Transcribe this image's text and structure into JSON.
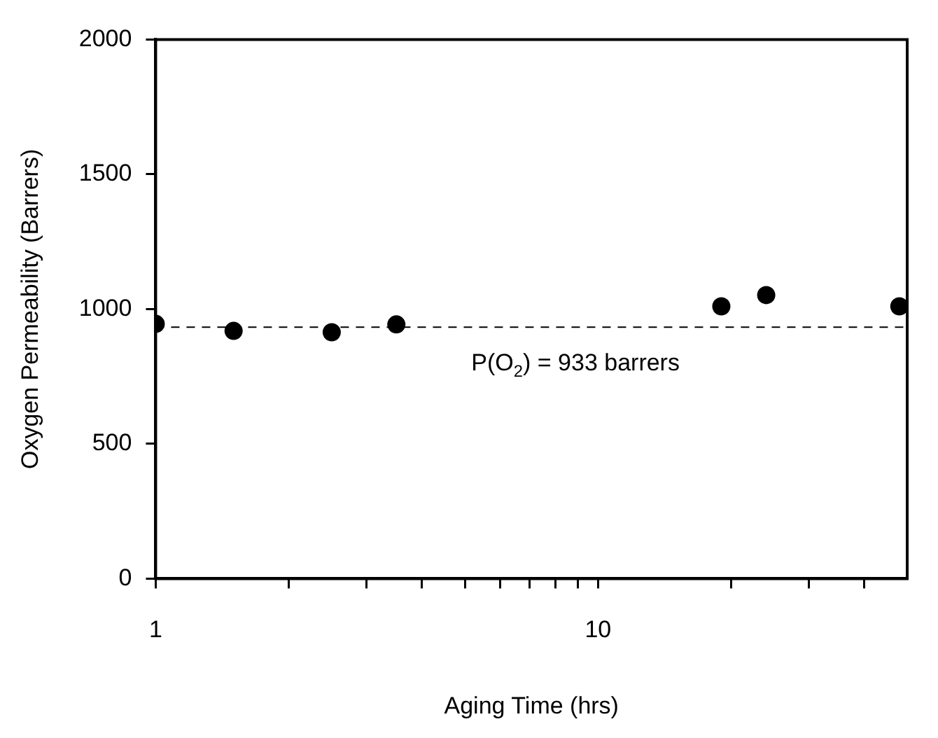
{
  "chart_data": {
    "type": "scatter",
    "xlabel": "Aging Time (hrs)",
    "ylabel": "Oxygen Permeability (Barrers)",
    "x": [
      1,
      1.5,
      2.5,
      3.5,
      19,
      24,
      48
    ],
    "series": [
      {
        "color": "#000000",
        "values": [
          945,
          919,
          914,
          943,
          1010,
          1052,
          1010
        ]
      }
    ],
    "xlim": [
      1,
      50
    ],
    "log": "x",
    "xticks": [
      1,
      {
        "value": 2,
        "label": null
      },
      {
        "value": 3,
        "label": null
      },
      {
        "value": 4,
        "label": null
      },
      {
        "value": 5,
        "label": null
      },
      {
        "value": 6,
        "label": null
      },
      {
        "value": 7,
        "label": null
      },
      {
        "value": 8,
        "label": null
      },
      {
        "value": 9,
        "label": null
      },
      10,
      {
        "value": 20,
        "label": null
      },
      {
        "value": 30,
        "label": null
      },
      {
        "value": 40,
        "label": null
      }
    ],
    "ylim": [
      0,
      2000
    ],
    "yticks": [
      0,
      500,
      1000,
      1500,
      2000
    ],
    "ref_lines": [
      {
        "axis": "y",
        "value": 933,
        "label": "P(O$_{2}$) = 933 barrers",
        "line_style": "dashed",
        "color": "#000000"
      }
    ],
    "marker": "circle",
    "grid": false,
    "legend": false
  }
}
